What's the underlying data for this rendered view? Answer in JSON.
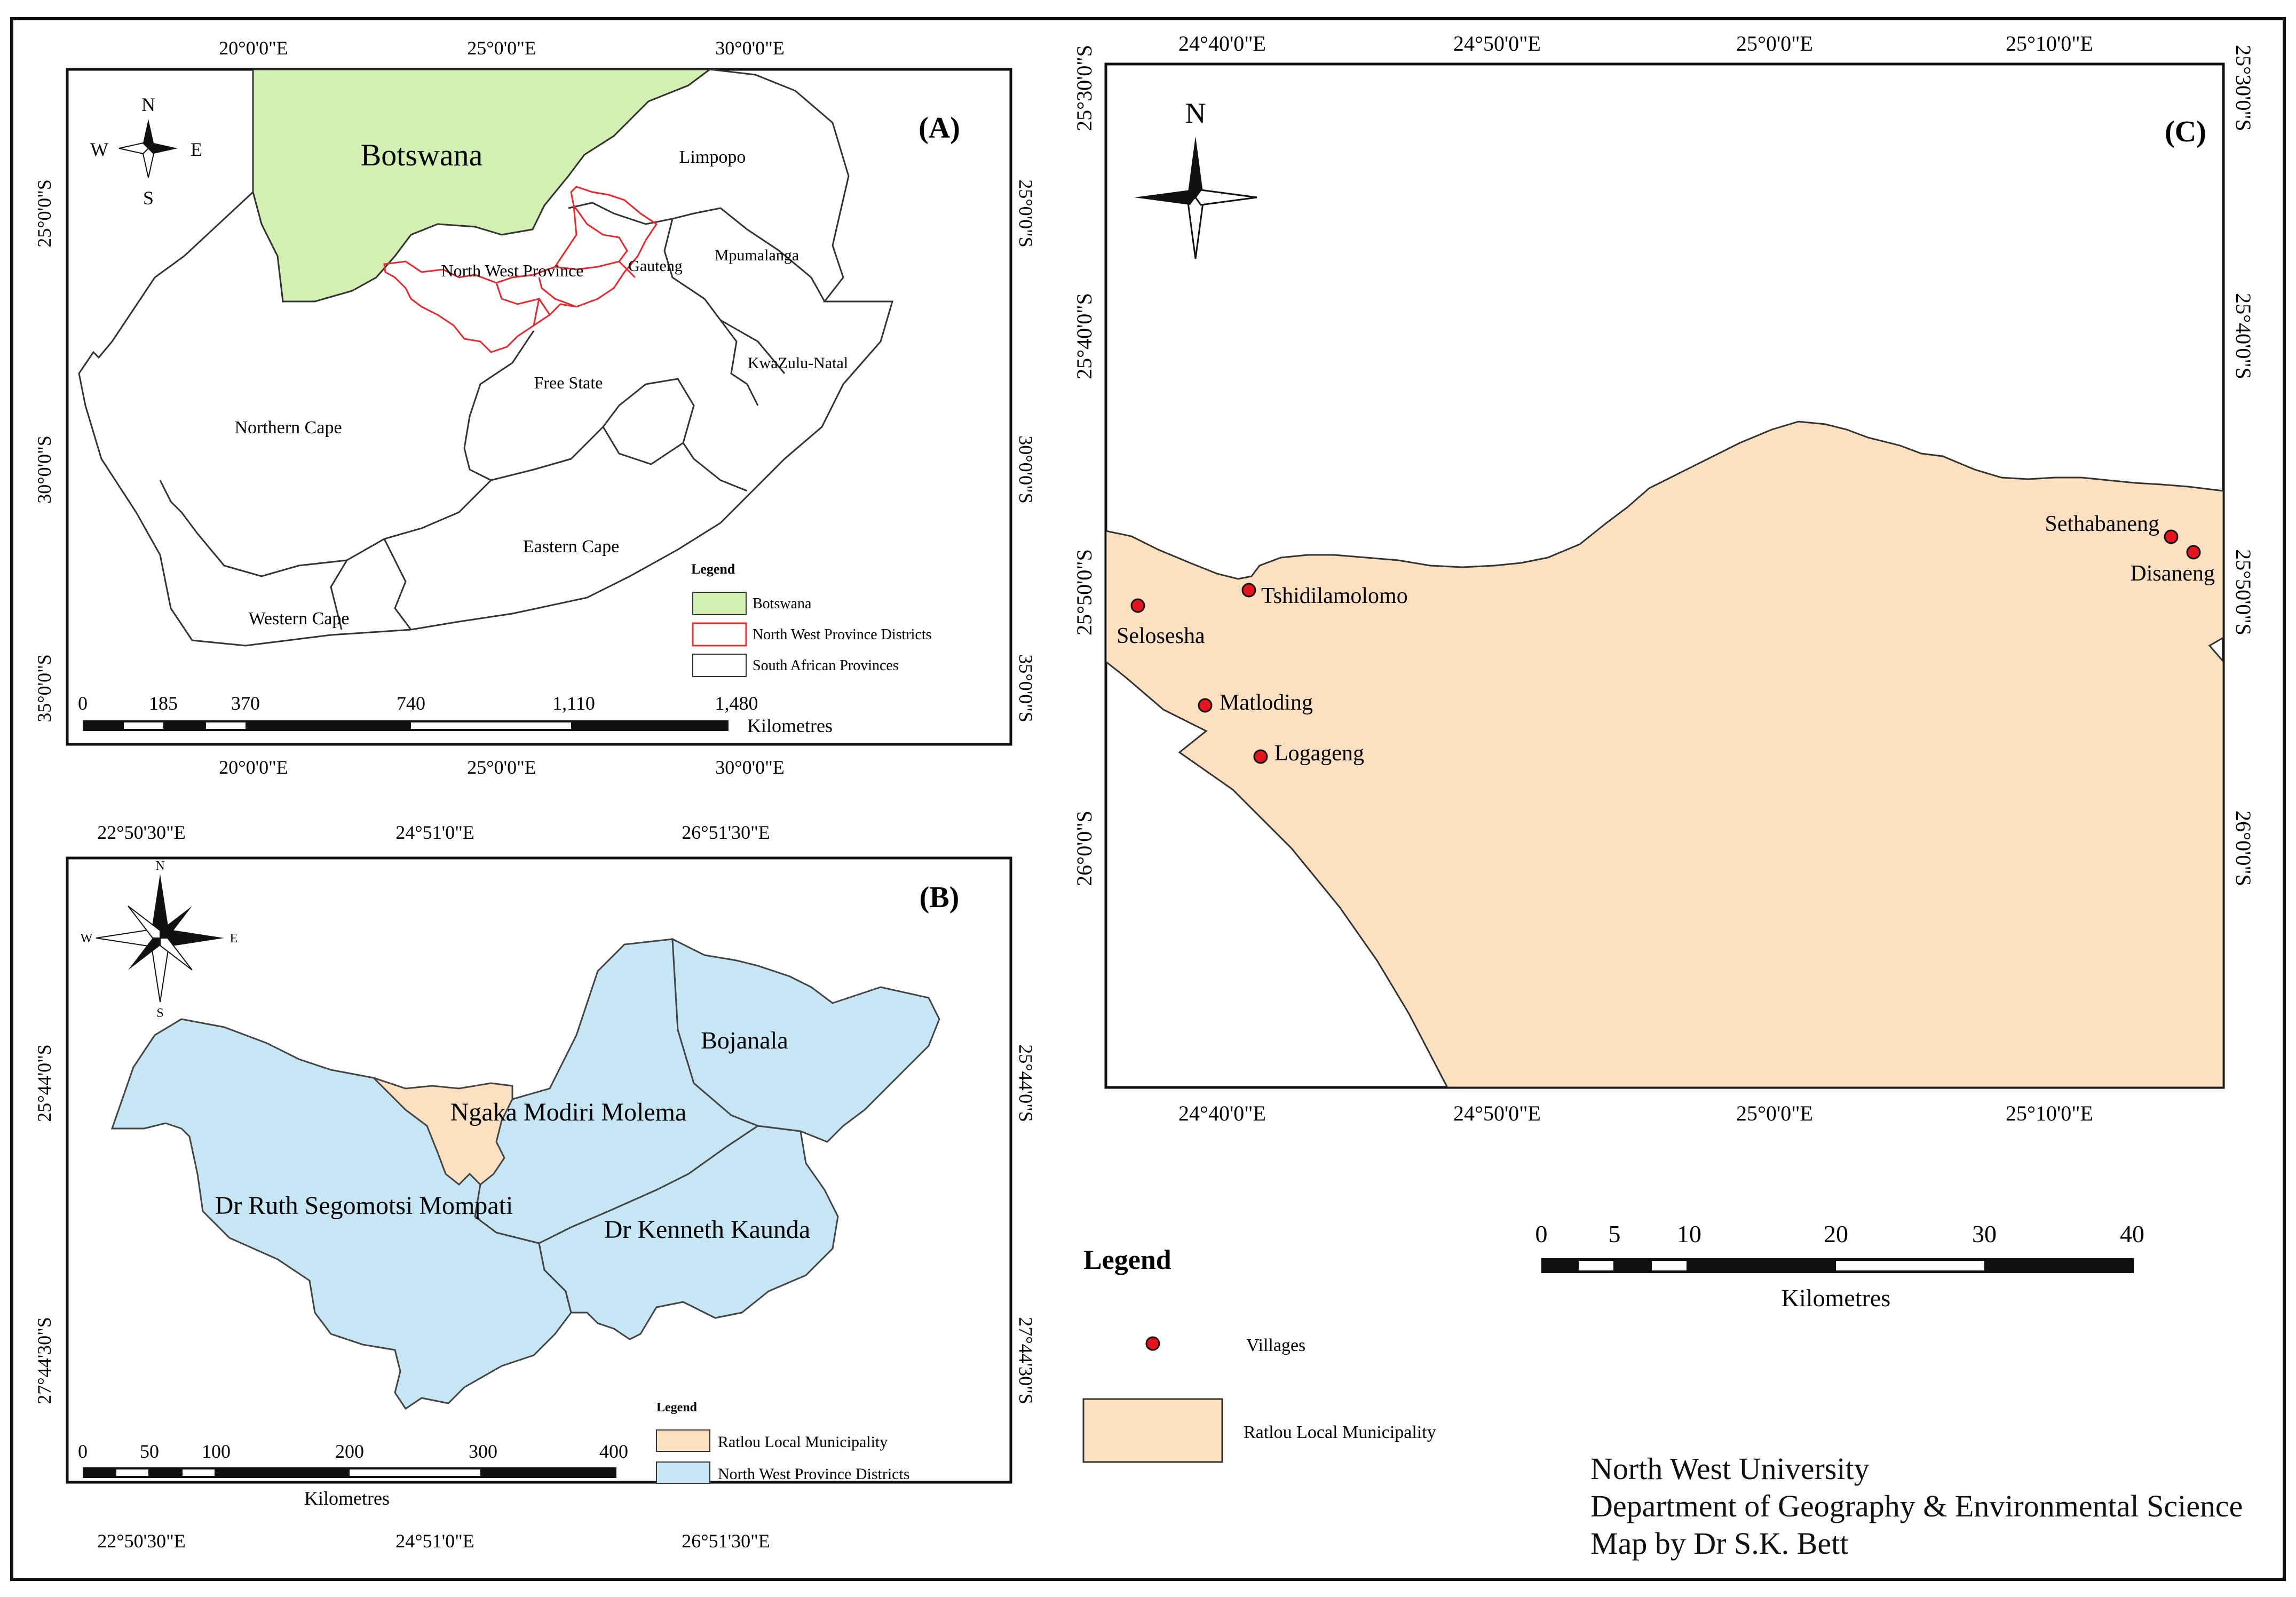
{
  "colors": {
    "botswana": "#d3f0b3",
    "ratlou": "#fde0bf",
    "districts": "#c6e6f5",
    "nw_outline": "#e8282c",
    "village": "#e4151c",
    "frame": "#111111"
  },
  "panel_a": {
    "label": "(A)",
    "lon_top": [
      "20°0'0\"E",
      "25°0'0\"E",
      "30°0'0\"E"
    ],
    "lon_bottom": [
      "20°0'0\"E",
      "25°0'0\"E",
      "30°0'0\"E"
    ],
    "lat_left": [
      "25°0'0\"S",
      "30°0'0\"S",
      "35°0'0\"S"
    ],
    "lat_right": [
      "25°0'0\"S",
      "30°0'0\"S",
      "35°0'0\"S"
    ],
    "north_arrow": {
      "n": "N",
      "s": "S",
      "e": "E",
      "w": "W"
    },
    "places": {
      "botswana": "Botswana",
      "limpopo": "Limpopo",
      "north_west": "North West Province",
      "gauteng": "Gauteng",
      "mpumalanga": "Mpumalanga",
      "kwazulu_natal": "KwaZulu-Natal",
      "free_state": "Free State",
      "northern_cape": "Northern Cape",
      "eastern_cape": "Eastern Cape",
      "western_cape": "Western Cape"
    },
    "legend": {
      "title": "Legend",
      "items": [
        "Botswana",
        "North West Province Districts",
        "South African Provinces"
      ]
    },
    "scale": {
      "ticks": [
        "0",
        "185",
        "370",
        "740",
        "1,110",
        "1,480"
      ],
      "unit": "Kilometres"
    }
  },
  "panel_b": {
    "label": "(B)",
    "lon_top": [
      "22°50'30\"E",
      "24°51'0\"E",
      "26°51'30\"E"
    ],
    "lon_bottom": [
      "22°50'30\"E",
      "24°51'0\"E",
      "26°51'30\"E"
    ],
    "lat_left": [
      "25°44'0\"S",
      "27°44'30\"S"
    ],
    "lat_right": [
      "25°44'0\"S",
      "27°44'30\"S"
    ],
    "north_arrow": {
      "n": "N",
      "s": "S",
      "e": "E",
      "w": "W"
    },
    "districts": {
      "bojanala": "Bojanala",
      "ngaka": "Ngaka Modiri Molema",
      "ruth": "Dr Ruth Segomotsi Mompati",
      "kenneth": "Dr Kenneth Kaunda"
    },
    "legend": {
      "title": "Legend",
      "items": [
        "Ratlou Local Municipality",
        "North West Province Districts"
      ]
    },
    "scale": {
      "ticks": [
        "0",
        "50",
        "100",
        "200",
        "300",
        "400"
      ],
      "unit": "Kilometres"
    }
  },
  "panel_c": {
    "label": "(C)",
    "lon_top": [
      "24°40'0\"E",
      "24°50'0\"E",
      "25°0'0\"E",
      "25°10'0\"E"
    ],
    "lon_bottom": [
      "24°40'0\"E",
      "24°50'0\"E",
      "25°0'0\"E",
      "25°10'0\"E"
    ],
    "lat_left": [
      "25°30'0\"S",
      "25°40'0\"S",
      "25°50'0\"S",
      "26°0'0\"S"
    ],
    "lat_right": [
      "25°30'0\"S",
      "25°40'0\"S",
      "25°50'0\"S",
      "26°0'0\"S"
    ],
    "north_arrow": {
      "n": "N"
    },
    "villages": [
      "Tshidilamolomo",
      "Selosesha",
      "Matloding",
      "Logageng",
      "Sethabaneng",
      "Disaneng"
    ],
    "legend": {
      "title": "Legend",
      "items": [
        "Villages",
        "Ratlou Local Municipality"
      ]
    },
    "scale": {
      "ticks": [
        "0",
        "5",
        "10",
        "20",
        "30",
        "40"
      ],
      "unit": "Kilometres"
    }
  },
  "credits": [
    "North West University",
    "Department of Geography & Environmental Science",
    "Map by Dr S.K. Bett"
  ]
}
